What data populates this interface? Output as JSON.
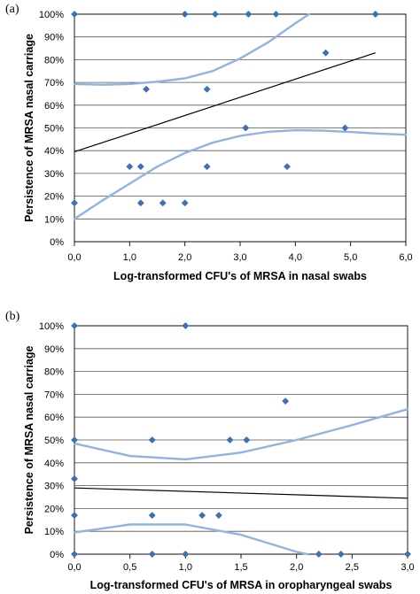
{
  "chart_data": [
    {
      "type": "scatter",
      "panel_label": "(a)",
      "title": "",
      "xlabel": "Log-transformed CFU's of MRSA in nasal swabs",
      "ylabel": "Persistence of MRSA nasal carriage",
      "xlim": [
        0,
        6
      ],
      "ylim": [
        0,
        100
      ],
      "x_ticks": [
        "0,0",
        "1,0",
        "2,0",
        "3,0",
        "4,0",
        "5,0",
        "6,0"
      ],
      "y_ticks": [
        "0%",
        "10%",
        "20%",
        "30%",
        "40%",
        "50%",
        "60%",
        "70%",
        "80%",
        "90%",
        "100%"
      ],
      "grid": true,
      "points": [
        {
          "x": 0.0,
          "y": 100
        },
        {
          "x": 2.0,
          "y": 100
        },
        {
          "x": 2.55,
          "y": 100
        },
        {
          "x": 3.15,
          "y": 100
        },
        {
          "x": 3.65,
          "y": 100
        },
        {
          "x": 5.45,
          "y": 100
        },
        {
          "x": 4.55,
          "y": 83
        },
        {
          "x": 1.3,
          "y": 67
        },
        {
          "x": 2.4,
          "y": 67
        },
        {
          "x": 3.1,
          "y": 50
        },
        {
          "x": 4.9,
          "y": 50
        },
        {
          "x": 1.0,
          "y": 33
        },
        {
          "x": 1.2,
          "y": 33
        },
        {
          "x": 2.4,
          "y": 33
        },
        {
          "x": 3.85,
          "y": 33
        },
        {
          "x": 0.0,
          "y": 17
        },
        {
          "x": 1.2,
          "y": 17
        },
        {
          "x": 1.6,
          "y": 17
        },
        {
          "x": 2.0,
          "y": 17
        }
      ],
      "trend_line": [
        {
          "x": 0.0,
          "y": 39.5
        },
        {
          "x": 5.45,
          "y": 83
        }
      ],
      "ci_upper": [
        {
          "x": 0.0,
          "y": 69.3
        },
        {
          "x": 0.5,
          "y": 69
        },
        {
          "x": 1.0,
          "y": 69.3
        },
        {
          "x": 1.5,
          "y": 70.3
        },
        {
          "x": 2.0,
          "y": 71.8
        },
        {
          "x": 2.5,
          "y": 75
        },
        {
          "x": 3.0,
          "y": 80.5
        },
        {
          "x": 3.5,
          "y": 87.5
        },
        {
          "x": 4.0,
          "y": 96
        },
        {
          "x": 4.25,
          "y": 100
        }
      ],
      "ci_lower": [
        {
          "x": 0.0,
          "y": 10
        },
        {
          "x": 0.5,
          "y": 18
        },
        {
          "x": 1.0,
          "y": 25.5
        },
        {
          "x": 1.5,
          "y": 33
        },
        {
          "x": 2.0,
          "y": 39
        },
        {
          "x": 2.5,
          "y": 43.5
        },
        {
          "x": 3.0,
          "y": 46.5
        },
        {
          "x": 3.5,
          "y": 48.3
        },
        {
          "x": 4.0,
          "y": 49
        },
        {
          "x": 4.5,
          "y": 48.8
        },
        {
          "x": 5.0,
          "y": 48.2
        },
        {
          "x": 5.5,
          "y": 47.5
        },
        {
          "x": 6.0,
          "y": 47
        }
      ]
    },
    {
      "type": "scatter",
      "panel_label": "(b)",
      "title": "",
      "xlabel": "Log-transformed CFU's of MRSA in oropharyngeal swabs",
      "ylabel": "Persistence of MRSA nasal carriage",
      "xlim": [
        0,
        3
      ],
      "ylim": [
        0,
        100
      ],
      "x_ticks": [
        "0,0",
        "0,5",
        "1,0",
        "1,5",
        "2,0",
        "2,5",
        "3,0"
      ],
      "y_ticks": [
        "0%",
        "10%",
        "20%",
        "30%",
        "40%",
        "50%",
        "60%",
        "70%",
        "80%",
        "90%",
        "100%"
      ],
      "grid": true,
      "points": [
        {
          "x": 0.0,
          "y": 100
        },
        {
          "x": 1.0,
          "y": 100
        },
        {
          "x": 1.9,
          "y": 67
        },
        {
          "x": 0.0,
          "y": 50
        },
        {
          "x": 0.7,
          "y": 50
        },
        {
          "x": 1.4,
          "y": 50
        },
        {
          "x": 1.55,
          "y": 50
        },
        {
          "x": 0.0,
          "y": 33
        },
        {
          "x": 0.0,
          "y": 17
        },
        {
          "x": 0.7,
          "y": 17
        },
        {
          "x": 1.15,
          "y": 17
        },
        {
          "x": 1.3,
          "y": 17
        },
        {
          "x": 0.0,
          "y": 0
        },
        {
          "x": 0.7,
          "y": 0
        },
        {
          "x": 1.0,
          "y": 0
        },
        {
          "x": 2.2,
          "y": 0
        },
        {
          "x": 2.4,
          "y": 0
        },
        {
          "x": 3.0,
          "y": 0
        }
      ],
      "trend_line": [
        {
          "x": 0.0,
          "y": 29
        },
        {
          "x": 3.0,
          "y": 24.5
        }
      ],
      "ci_upper": [
        {
          "x": 0.0,
          "y": 48.5
        },
        {
          "x": 0.5,
          "y": 43
        },
        {
          "x": 1.0,
          "y": 41.5
        },
        {
          "x": 1.5,
          "y": 44.5
        },
        {
          "x": 2.0,
          "y": 50
        },
        {
          "x": 2.5,
          "y": 56.5
        },
        {
          "x": 3.0,
          "y": 63.5
        }
      ],
      "ci_lower": [
        {
          "x": 0.0,
          "y": 9.5
        },
        {
          "x": 0.5,
          "y": 13
        },
        {
          "x": 1.0,
          "y": 13
        },
        {
          "x": 1.5,
          "y": 8.5
        },
        {
          "x": 2.0,
          "y": 1
        },
        {
          "x": 2.1,
          "y": 0
        }
      ]
    }
  ]
}
